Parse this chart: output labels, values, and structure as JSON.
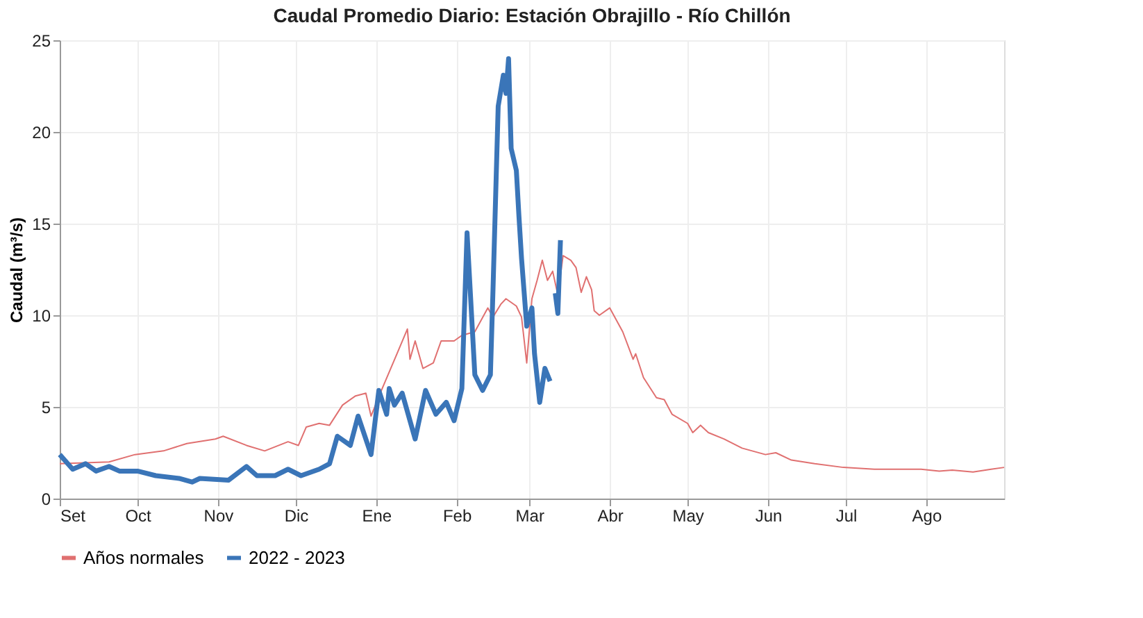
{
  "chart_data": {
    "type": "line",
    "title": "Caudal Promedio Diario: Estación Obrajillo - Río Chillón",
    "ylabel": "Caudal (m³/s)",
    "xlim": [
      "2022-09-01",
      "2023-08-31"
    ],
    "ylim": [
      0,
      25
    ],
    "yticks": [
      0,
      5,
      10,
      15,
      20,
      25
    ],
    "xticks": [
      {
        "value": "2022-09-01",
        "label": "Set"
      },
      {
        "value": "2022-10-01",
        "label": "Oct"
      },
      {
        "value": "2022-11-01",
        "label": "Nov"
      },
      {
        "value": "2022-12-01",
        "label": "Dic"
      },
      {
        "value": "2023-01-01",
        "label": "Ene"
      },
      {
        "value": "2023-02-01",
        "label": "Feb"
      },
      {
        "value": "2023-03-01",
        "label": "Mar"
      },
      {
        "value": "2023-04-01",
        "label": "Abr"
      },
      {
        "value": "2023-05-01",
        "label": "May"
      },
      {
        "value": "2023-06-01",
        "label": "Jun"
      },
      {
        "value": "2023-07-01",
        "label": "Jul"
      },
      {
        "value": "2023-08-01",
        "label": "Ago"
      }
    ],
    "grid": true,
    "legend": "bottom",
    "line_style": "solid",
    "marker": "none",
    "series": [
      {
        "name": "Años normales",
        "color": "#e07070",
        "x": [
          "2022-09-01",
          "2022-09-20",
          "2022-09-30",
          "2022-10-11",
          "2022-10-20",
          "2022-10-31",
          "2022-11-03",
          "2022-11-12",
          "2022-11-19",
          "2022-11-28",
          "2022-12-02",
          "2022-12-05",
          "2022-12-10",
          "2022-12-14",
          "2022-12-19",
          "2022-12-24",
          "2022-12-28",
          "2022-12-30",
          "2023-01-03",
          "2023-01-09",
          "2023-01-13",
          "2023-01-14",
          "2023-01-16",
          "2023-01-19",
          "2023-01-23",
          "2023-01-26",
          "2023-01-31",
          "2023-02-03",
          "2023-02-08",
          "2023-02-13",
          "2023-02-15",
          "2023-02-18",
          "2023-02-20",
          "2023-02-24",
          "2023-02-26",
          "2023-02-28",
          "2023-03-02",
          "2023-03-04",
          "2023-03-06",
          "2023-03-08",
          "2023-03-10",
          "2023-03-12",
          "2023-03-14",
          "2023-03-17",
          "2023-03-19",
          "2023-03-21",
          "2023-03-23",
          "2023-03-25",
          "2023-03-26",
          "2023-03-28",
          "2023-04-01",
          "2023-04-06",
          "2023-04-10",
          "2023-04-11",
          "2023-04-14",
          "2023-04-19",
          "2023-04-22",
          "2023-04-25",
          "2023-05-01",
          "2023-05-03",
          "2023-05-06",
          "2023-05-09",
          "2023-05-15",
          "2023-05-22",
          "2023-05-31",
          "2023-06-04",
          "2023-06-10",
          "2023-06-19",
          "2023-06-30",
          "2023-07-12",
          "2023-07-30",
          "2023-08-06",
          "2023-08-11",
          "2023-08-19",
          "2023-08-26",
          "2023-08-31"
        ],
        "values": [
          1.9,
          2.0,
          2.4,
          2.6,
          3.0,
          3.25,
          3.4,
          2.9,
          2.6,
          3.1,
          2.9,
          3.9,
          4.1,
          4.0,
          5.1,
          5.6,
          5.75,
          4.5,
          5.9,
          7.9,
          9.25,
          7.6,
          8.6,
          7.1,
          7.4,
          8.6,
          8.6,
          8.9,
          9.1,
          10.4,
          9.9,
          10.6,
          10.9,
          10.5,
          9.9,
          7.4,
          10.9,
          11.9,
          13.0,
          11.9,
          12.4,
          11.1,
          13.25,
          13.0,
          12.6,
          11.25,
          12.1,
          11.4,
          10.25,
          10.0,
          10.4,
          9.1,
          7.6,
          7.9,
          6.6,
          5.5,
          5.4,
          4.6,
          4.1,
          3.6,
          4.0,
          3.6,
          3.25,
          2.75,
          2.4,
          2.5,
          2.1,
          1.9,
          1.7,
          1.6,
          1.6,
          1.5,
          1.55,
          1.45,
          1.6,
          1.7
        ]
      },
      {
        "name": "2022 - 2023",
        "color": "#3a75b8",
        "x": [
          "2022-09-01",
          "2022-09-06",
          "2022-09-11",
          "2022-09-15",
          "2022-09-20",
          "2022-09-24",
          "2022-10-01",
          "2022-10-08",
          "2022-10-17",
          "2022-10-22",
          "2022-10-25",
          "2022-11-05",
          "2022-11-12",
          "2022-11-16",
          "2022-11-23",
          "2022-11-28",
          "2022-12-03",
          "2022-12-10",
          "2022-12-14",
          "2022-12-17",
          "2022-12-22",
          "2022-12-25",
          "2022-12-30",
          "2023-01-02",
          "2023-01-05",
          "2023-01-06",
          "2023-01-08",
          "2023-01-11",
          "2023-01-16",
          "2023-01-20",
          "2023-01-24",
          "2023-01-28",
          "2023-01-31",
          "2023-02-03",
          "2023-02-05",
          "2023-02-08",
          "2023-02-11",
          "2023-02-14",
          "2023-02-15",
          "2023-02-17",
          "2023-02-19",
          "2023-02-20",
          "2023-02-21",
          "2023-02-22",
          "2023-02-24",
          "2023-02-25",
          "2023-02-26",
          "2023-02-28",
          "2023-03-02",
          "2023-03-03",
          "2023-03-05",
          "2023-03-07",
          "2023-03-09",
          "2023-03-10",
          "2023-03-11",
          "2023-03-12",
          "2023-03-13"
        ],
        "values": [
          2.4,
          1.6,
          1.9,
          1.5,
          1.75,
          1.5,
          1.5,
          1.25,
          1.1,
          0.9,
          1.1,
          1.0,
          1.75,
          1.25,
          1.25,
          1.6,
          1.25,
          1.6,
          1.9,
          3.4,
          2.9,
          4.5,
          2.4,
          5.9,
          4.6,
          6.0,
          5.1,
          5.75,
          3.25,
          5.9,
          4.6,
          5.25,
          4.25,
          6.0,
          14.5,
          6.75,
          5.9,
          6.75,
          11.4,
          21.4,
          23.1,
          22.1,
          24.0,
          19.1,
          17.9,
          15.4,
          13.1,
          9.4,
          10.4,
          7.9,
          5.25,
          7.1,
          6.4,
          null,
          11.2,
          10.1,
          14.1
        ]
      }
    ]
  }
}
